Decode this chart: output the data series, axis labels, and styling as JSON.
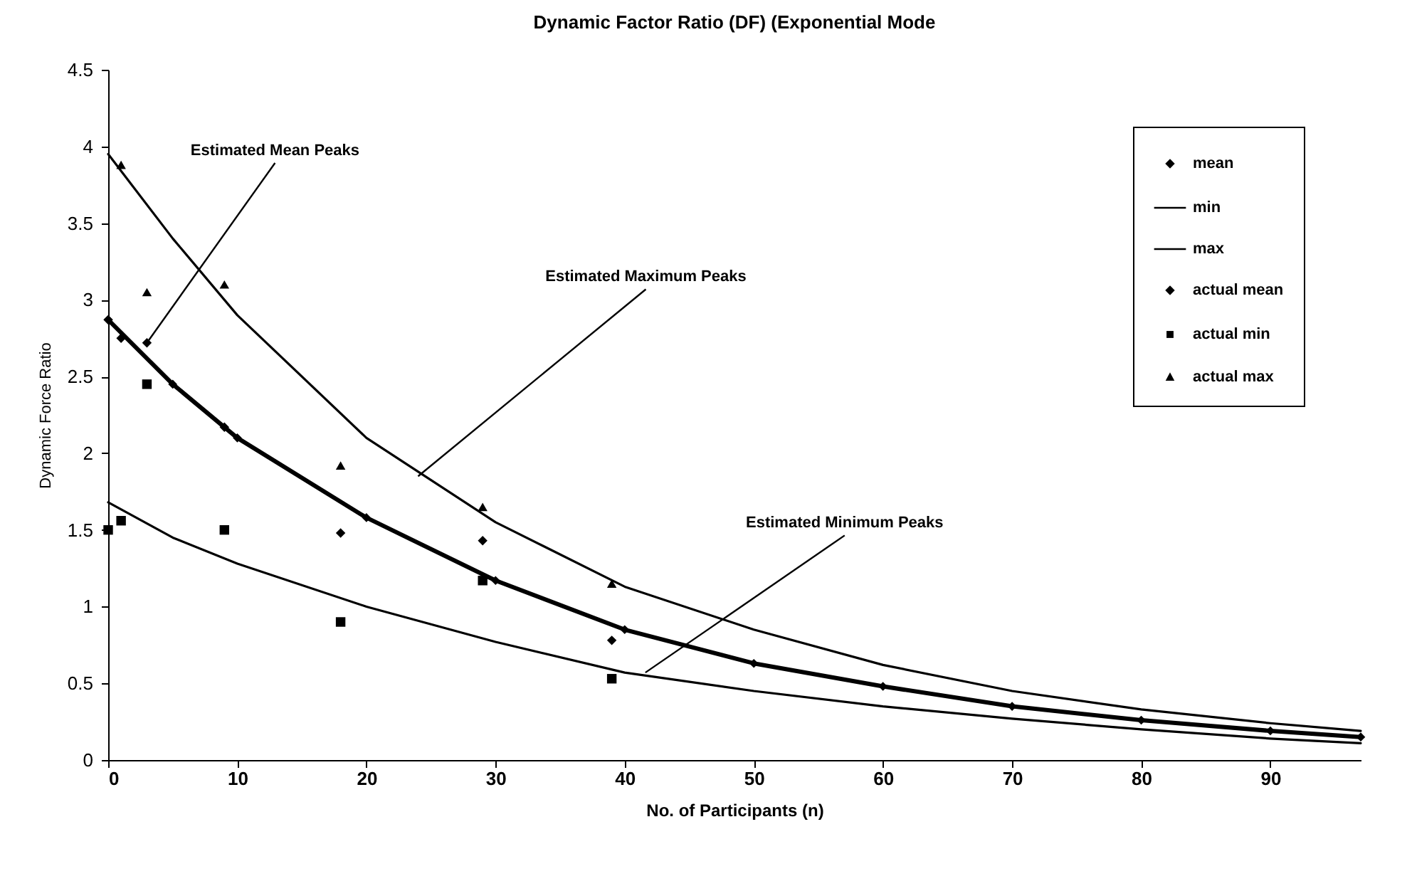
{
  "chart_data": {
    "type": "line",
    "title": "Dynamic Factor Ratio (DF) (Exponential Mode",
    "xlabel": "No. of Participants (n)",
    "ylabel": "Dynamic Force Ratio",
    "xlim": [
      0,
      97
    ],
    "xticks": [
      0,
      10,
      20,
      30,
      40,
      50,
      60,
      70,
      80,
      90
    ],
    "ylim": [
      0,
      4.5
    ],
    "yticks": [
      0,
      0.5,
      1,
      1.5,
      2,
      2.5,
      3,
      3.5,
      4,
      4.5
    ],
    "legend": "top right",
    "series": [
      {
        "name": "mean",
        "marker": "diamond",
        "color": "#000000",
        "x": [
          0,
          5,
          10,
          20,
          30,
          40,
          50,
          60,
          70,
          80,
          90,
          97
        ],
        "values": [
          2.87,
          2.45,
          2.1,
          1.58,
          1.17,
          0.85,
          0.63,
          0.48,
          0.35,
          0.26,
          0.19,
          0.15
        ]
      },
      {
        "name": "min",
        "marker": "none",
        "color": "#000000",
        "x": [
          0,
          5,
          10,
          20,
          30,
          40,
          50,
          60,
          70,
          80,
          90,
          97
        ],
        "values": [
          1.68,
          1.45,
          1.28,
          1.0,
          0.77,
          0.57,
          0.45,
          0.35,
          0.27,
          0.2,
          0.14,
          0.11
        ]
      },
      {
        "name": "max",
        "marker": "none",
        "color": "#000000",
        "x": [
          0,
          5,
          10,
          20,
          30,
          40,
          50,
          60,
          70,
          80,
          90,
          97
        ],
        "values": [
          3.95,
          3.4,
          2.9,
          2.1,
          1.55,
          1.13,
          0.85,
          0.62,
          0.45,
          0.33,
          0.24,
          0.19
        ]
      },
      {
        "name": "actual mean",
        "type": "scatter",
        "marker": "diamond",
        "color": "#000000",
        "x": [
          0,
          1,
          3,
          9,
          18,
          29,
          39
        ],
        "values": [
          2.87,
          2.75,
          2.72,
          2.17,
          1.48,
          1.43,
          0.78
        ]
      },
      {
        "name": "actual min",
        "type": "scatter",
        "marker": "square",
        "color": "#000000",
        "x": [
          0,
          1,
          3,
          9,
          18,
          29,
          39
        ],
        "values": [
          1.5,
          1.56,
          2.45,
          1.5,
          0.9,
          1.17,
          0.53
        ]
      },
      {
        "name": "actual max",
        "type": "scatter",
        "marker": "triangle",
        "color": "#000000",
        "x": [
          1,
          3,
          9,
          18,
          29,
          39
        ],
        "values": [
          3.88,
          3.05,
          3.1,
          1.92,
          1.65,
          1.15
        ]
      }
    ],
    "annotations": [
      {
        "text": "Estimated Mean Peaks",
        "x": 3,
        "y": 2.72
      },
      {
        "text": "Estimated Maximum Peaks",
        "x": 24,
        "y": 1.85
      },
      {
        "text": "Estimated Minimum Peaks",
        "x": 41.6,
        "y": 0.57
      }
    ]
  }
}
